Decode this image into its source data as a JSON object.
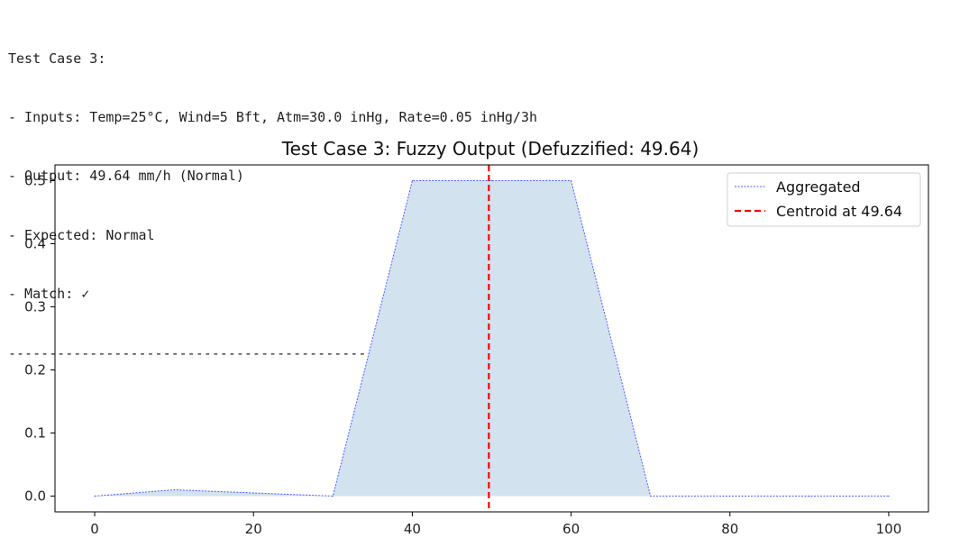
{
  "console": {
    "lines": [
      "Test Case 3:",
      "- Inputs: Temp=25°C, Wind=5 Bft, Atm=30.0 inHg, Rate=0.05 inHg/3h",
      "- Output: 49.64 mm/h (Normal)",
      "- Expected: Normal",
      "- Match: ✓",
      "------------------------------------------------------------"
    ]
  },
  "chart_data": {
    "type": "area",
    "title": "Test Case 3: Fuzzy Output (Defuzzified: 49.64)",
    "xlabel": "",
    "ylabel": "",
    "xlim": [
      -5,
      105
    ],
    "ylim": [
      -0.025,
      0.525
    ],
    "x_ticks": [
      0,
      20,
      40,
      60,
      80,
      100
    ],
    "y_ticks": [
      0.0,
      0.1,
      0.2,
      0.3,
      0.4,
      0.5
    ],
    "x_tick_labels": [
      "0",
      "20",
      "40",
      "60",
      "80",
      "100"
    ],
    "y_tick_labels": [
      "0.0",
      "0.1",
      "0.2",
      "0.3",
      "0.4",
      "0.5"
    ],
    "grid": false,
    "legend_position": "top-right",
    "series": [
      {
        "name": "Aggregated",
        "style": "dotted",
        "color": "#4f5cff",
        "fill_color": "#d2e2ef",
        "x": [
          0,
          10,
          20,
          30,
          40,
          50,
          60,
          70,
          80,
          90,
          100
        ],
        "y": [
          0.0,
          0.01,
          0.005,
          0.0,
          0.5,
          0.5,
          0.5,
          0.0,
          0.0,
          0.0,
          0.0
        ]
      }
    ],
    "vlines": [
      {
        "name": "Centroid at 49.64",
        "x": 49.64,
        "style": "dashed",
        "color": "#ff0000"
      }
    ]
  }
}
